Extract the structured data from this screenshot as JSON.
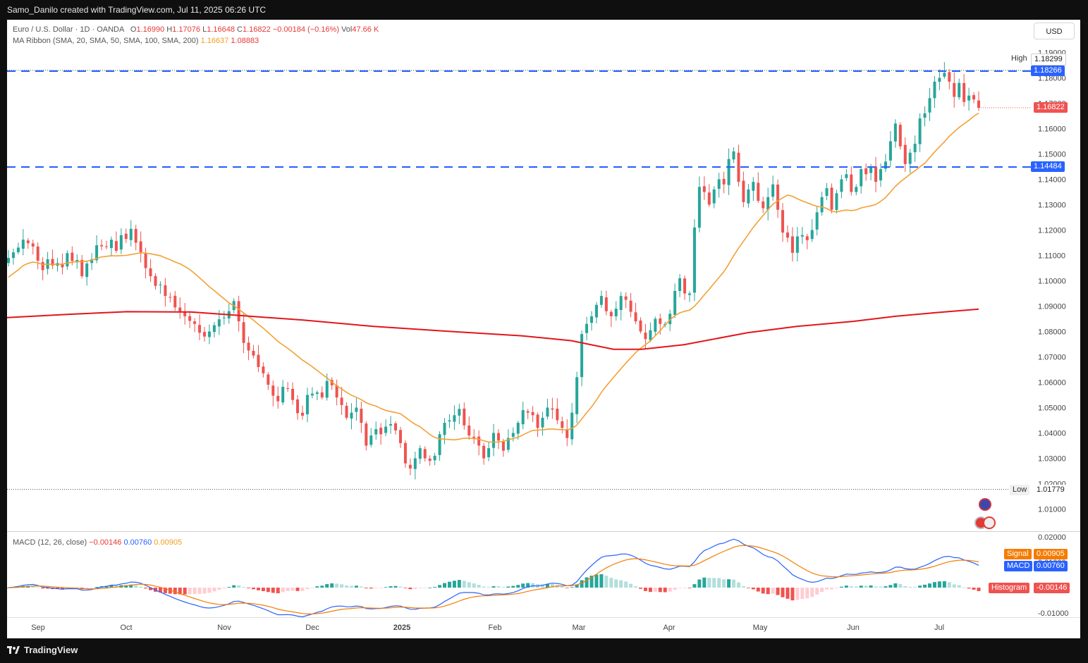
{
  "header": {
    "attribution": "Samo_Danilo created with TradingView.com, Jul 11, 2025 06:26 UTC"
  },
  "footer": {
    "brand": "TradingView"
  },
  "legend": {
    "symbol": "Euro / U.S. Dollar · 1D · OANDA",
    "o_label": "O",
    "o_value": "1.16990",
    "h_label": "H",
    "h_value": "1.17076",
    "l_label": "L",
    "l_value": "1.16648",
    "c_label": "C",
    "c_value": "1.16822",
    "change": "−0.00184 (−0.16%)",
    "vol_label": "Vol",
    "vol_value": "47.66 K",
    "ma_label": "MA Ribbon (SMA, 20, SMA, 50, SMA, 100, SMA, 200)",
    "ma_value_1": "1.16637",
    "ma_value_2": "1.08883"
  },
  "macd_legend": {
    "label": "MACD (12, 26, close)",
    "hist": "−0.00146",
    "macd": "0.00760",
    "signal": "0.00905"
  },
  "currency_button": "USD",
  "price_tags": {
    "high_label": "High",
    "high_value": "1.18299",
    "resistance": "1.18266",
    "last": "1.16822",
    "support": "1.14484",
    "low_label": "Low",
    "low_value": "1.01779"
  },
  "macd_tags": {
    "signal_label": "Signal",
    "signal_value": "0.00905",
    "macd_label": "MACD",
    "macd_value": "0.00760",
    "hist_label": "Histogram",
    "hist_value": "-0.00146"
  },
  "colors": {
    "up": "#26a69a",
    "down": "#ef5350",
    "ma20": "#f2a134",
    "ma200": "#e2151b",
    "hline": "#2962ff",
    "macd": "#2962ff",
    "signal": "#f57c00"
  },
  "chart_data": [
    {
      "type": "candlestick",
      "symbol": "EUR/USD",
      "timeframe": "1D",
      "x_ticks": [
        "Sep",
        "Oct",
        "Nov",
        "Dec",
        "2025",
        "Feb",
        "Mar",
        "Apr",
        "May",
        "Jun",
        "Jul"
      ],
      "y_ticks": [
        "1.19000",
        "1.18000",
        "1.17000",
        "1.16000",
        "1.15000",
        "1.14000",
        "1.13000",
        "1.12000",
        "1.11000",
        "1.10000",
        "1.09000",
        "1.08000",
        "1.07000",
        "1.06000",
        "1.05000",
        "1.04000",
        "1.03000",
        "1.02000",
        "1.01000"
      ],
      "ylim": [
        1.0055,
        1.1925
      ],
      "closes": [
        1.109,
        1.1112,
        1.1131,
        1.1162,
        1.1148,
        1.1135,
        1.1079,
        1.1042,
        1.1085,
        1.106,
        1.107,
        1.1053,
        1.1109,
        1.1078,
        1.1082,
        1.1018,
        1.1068,
        1.1085,
        1.114,
        1.1136,
        1.1133,
        1.1162,
        1.1118,
        1.118,
        1.1165,
        1.1205,
        1.115,
        1.1113,
        1.105,
        1.1018,
        1.098,
        1.0985,
        1.094,
        1.0935,
        1.0895,
        1.088,
        1.086,
        1.0842,
        1.083,
        1.0795,
        1.078,
        1.08,
        1.0825,
        1.0848,
        1.0855,
        1.088,
        1.092,
        1.084,
        1.0755,
        1.0725,
        1.0705,
        1.066,
        1.0635,
        1.059,
        1.0547,
        1.0525,
        1.0582,
        1.0575,
        1.053,
        1.0478,
        1.0468,
        1.055,
        1.0555,
        1.056,
        1.054,
        1.0605,
        1.0588,
        1.054,
        1.051,
        1.046,
        1.048,
        1.05,
        1.044,
        1.035,
        1.039,
        1.0415,
        1.0395,
        1.0425,
        1.0435,
        1.041,
        1.036,
        1.028,
        1.026,
        1.03,
        1.034,
        1.03,
        1.029,
        1.031,
        1.0395,
        1.044,
        1.045,
        1.047,
        1.0495,
        1.043,
        1.039,
        1.038,
        1.035,
        1.03,
        1.034,
        1.04,
        1.037,
        1.033,
        1.038,
        1.04,
        1.044,
        1.049,
        1.048,
        1.047,
        1.042,
        1.046,
        1.05,
        1.0492,
        1.045,
        1.042,
        1.038,
        1.048,
        1.062,
        1.079,
        1.083,
        1.086,
        1.0905,
        1.094,
        1.088,
        1.086,
        1.089,
        1.094,
        1.0925,
        1.0878,
        1.084,
        1.08,
        1.077,
        1.0805,
        1.085,
        1.083,
        1.083,
        1.087,
        1.096,
        1.101,
        1.095,
        1.095,
        1.121,
        1.137,
        1.135,
        1.13,
        1.136,
        1.14,
        1.138,
        1.148,
        1.151,
        1.139,
        1.131,
        1.136,
        1.139,
        1.1315,
        1.1286,
        1.133,
        1.138,
        1.128,
        1.119,
        1.117,
        1.111,
        1.1175,
        1.118,
        1.116,
        1.12,
        1.127,
        1.133,
        1.1365,
        1.128,
        1.1345,
        1.14,
        1.142,
        1.135,
        1.137,
        1.144,
        1.142,
        1.145,
        1.139,
        1.144,
        1.147,
        1.155,
        1.162,
        1.153,
        1.146,
        1.1505,
        1.154,
        1.164,
        1.166,
        1.172,
        1.1785,
        1.18,
        1.182,
        1.1785,
        1.1725,
        1.178,
        1.1705,
        1.173,
        1.1715,
        1.1682
      ],
      "high": 1.18299,
      "low": 1.01779,
      "last": 1.16822,
      "horizontal_levels": [
        1.18266,
        1.14484
      ],
      "series": [
        {
          "name": "SMA 20",
          "last": 1.16637
        },
        {
          "name": "SMA 200",
          "last": 1.08883
        }
      ]
    },
    {
      "type": "line",
      "name": "MACD (12, 26, close)",
      "y_ticks": [
        "0.02000",
        "0.01000",
        "-0.01000"
      ],
      "ylim": [
        -0.0125,
        0.0205
      ],
      "series": [
        {
          "name": "MACD",
          "last": 0.0076
        },
        {
          "name": "Signal",
          "last": 0.00905
        },
        {
          "name": "Histogram",
          "last": -0.00146
        }
      ]
    }
  ]
}
